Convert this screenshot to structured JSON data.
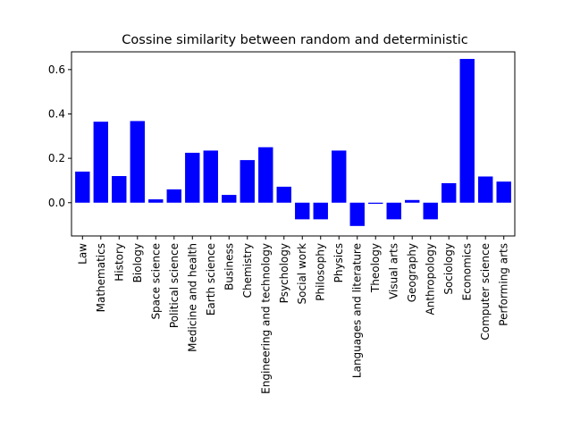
{
  "chart_data": {
    "type": "bar",
    "title": "Cossine similarity between random and deterministic",
    "xlabel": "",
    "ylabel": "",
    "categories": [
      "Law",
      "Mathematics",
      "History",
      "Biology",
      "Space science",
      "Political science",
      "Medicine and health",
      "Earth science",
      "Business",
      "Chemistry",
      "Engineering and technology",
      "Psychology",
      "Social work",
      "Philosophy",
      "Physics",
      "Languages and literature",
      "Theology",
      "Visual arts",
      "Geography",
      "Anthropology",
      "Sociology",
      "Economics",
      "Computer science",
      "Performing arts"
    ],
    "values": [
      0.14,
      0.365,
      0.12,
      0.368,
      0.015,
      0.06,
      0.225,
      0.235,
      0.035,
      0.192,
      0.25,
      0.072,
      -0.075,
      -0.075,
      0.235,
      -0.105,
      -0.005,
      -0.075,
      0.012,
      -0.075,
      0.088,
      0.648,
      0.118,
      0.095
    ],
    "ylim": [
      -0.15,
      0.68
    ],
    "yticks": [
      0.0,
      0.2,
      0.4,
      0.6
    ],
    "ytick_labels": [
      "0.0",
      "0.2",
      "0.4",
      "0.6"
    ],
    "bar_color": "#0000ff",
    "grid": false,
    "legend": "none"
  }
}
